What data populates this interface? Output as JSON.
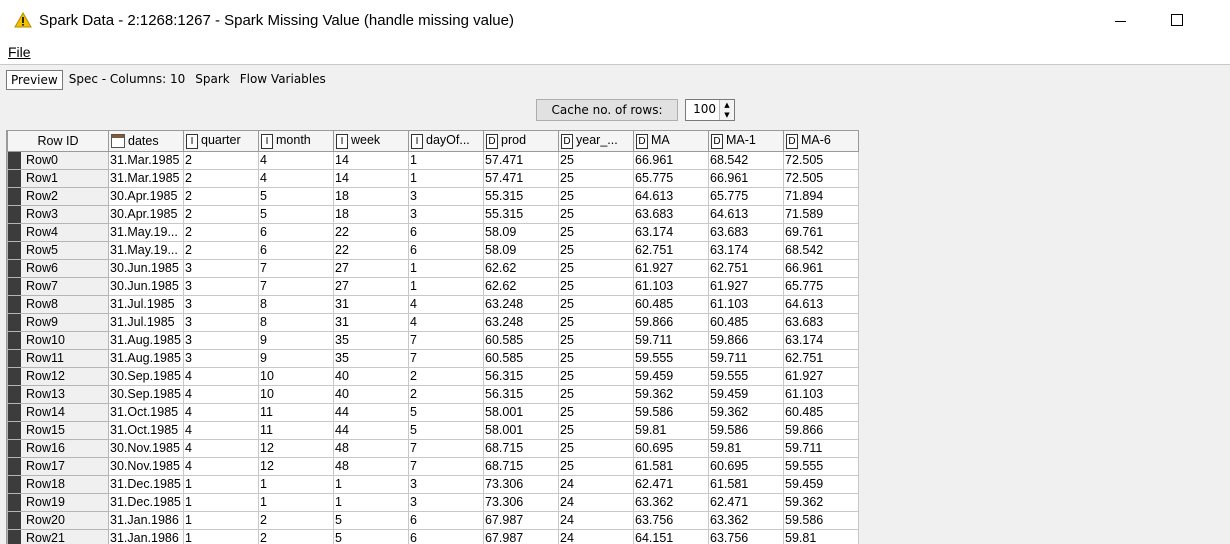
{
  "window": {
    "title": "Spark Data - 2:1268:1267 - Spark Missing Value (handle missing value)",
    "icon": "warning-triangle-icon",
    "accent": "#f2c200"
  },
  "menu": {
    "file_label": "File"
  },
  "tabs": [
    {
      "label": "Preview",
      "active": true
    },
    {
      "label": "Spec - Columns: 10",
      "active": false
    },
    {
      "label": "Spark",
      "active": false
    },
    {
      "label": "Flow Variables",
      "active": false
    }
  ],
  "cache": {
    "button_label": "Cache no. of rows:",
    "value": "100"
  },
  "table": {
    "columns": [
      {
        "label": "Row ID",
        "type": ""
      },
      {
        "label": "dates",
        "type": "date"
      },
      {
        "label": "quarter",
        "type": "I"
      },
      {
        "label": "month",
        "type": "I"
      },
      {
        "label": "week",
        "type": "I"
      },
      {
        "label": "dayOf...",
        "type": "I"
      },
      {
        "label": "prod",
        "type": "D"
      },
      {
        "label": "year_...",
        "type": "D"
      },
      {
        "label": "MA",
        "type": "D"
      },
      {
        "label": "MA-1",
        "type": "D"
      },
      {
        "label": "MA-6",
        "type": "D"
      }
    ],
    "rows": [
      [
        "Row0",
        "31.Mar.1985",
        "2",
        "4",
        "14",
        "1",
        "57.471",
        "25",
        "66.961",
        "68.542",
        "72.505"
      ],
      [
        "Row1",
        "31.Mar.1985",
        "2",
        "4",
        "14",
        "1",
        "57.471",
        "25",
        "65.775",
        "66.961",
        "72.505"
      ],
      [
        "Row2",
        "30.Apr.1985",
        "2",
        "5",
        "18",
        "3",
        "55.315",
        "25",
        "64.613",
        "65.775",
        "71.894"
      ],
      [
        "Row3",
        "30.Apr.1985",
        "2",
        "5",
        "18",
        "3",
        "55.315",
        "25",
        "63.683",
        "64.613",
        "71.589"
      ],
      [
        "Row4",
        "31.May.19...",
        "2",
        "6",
        "22",
        "6",
        "58.09",
        "25",
        "63.174",
        "63.683",
        "69.761"
      ],
      [
        "Row5",
        "31.May.19...",
        "2",
        "6",
        "22",
        "6",
        "58.09",
        "25",
        "62.751",
        "63.174",
        "68.542"
      ],
      [
        "Row6",
        "30.Jun.1985",
        "3",
        "7",
        "27",
        "1",
        "62.62",
        "25",
        "61.927",
        "62.751",
        "66.961"
      ],
      [
        "Row7",
        "30.Jun.1985",
        "3",
        "7",
        "27",
        "1",
        "62.62",
        "25",
        "61.103",
        "61.927",
        "65.775"
      ],
      [
        "Row8",
        "31.Jul.1985",
        "3",
        "8",
        "31",
        "4",
        "63.248",
        "25",
        "60.485",
        "61.103",
        "64.613"
      ],
      [
        "Row9",
        "31.Jul.1985",
        "3",
        "8",
        "31",
        "4",
        "63.248",
        "25",
        "59.866",
        "60.485",
        "63.683"
      ],
      [
        "Row10",
        "31.Aug.1985",
        "3",
        "9",
        "35",
        "7",
        "60.585",
        "25",
        "59.711",
        "59.866",
        "63.174"
      ],
      [
        "Row11",
        "31.Aug.1985",
        "3",
        "9",
        "35",
        "7",
        "60.585",
        "25",
        "59.555",
        "59.711",
        "62.751"
      ],
      [
        "Row12",
        "30.Sep.1985",
        "4",
        "10",
        "40",
        "2",
        "56.315",
        "25",
        "59.459",
        "59.555",
        "61.927"
      ],
      [
        "Row13",
        "30.Sep.1985",
        "4",
        "10",
        "40",
        "2",
        "56.315",
        "25",
        "59.362",
        "59.459",
        "61.103"
      ],
      [
        "Row14",
        "31.Oct.1985",
        "4",
        "11",
        "44",
        "5",
        "58.001",
        "25",
        "59.586",
        "59.362",
        "60.485"
      ],
      [
        "Row15",
        "31.Oct.1985",
        "4",
        "11",
        "44",
        "5",
        "58.001",
        "25",
        "59.81",
        "59.586",
        "59.866"
      ],
      [
        "Row16",
        "30.Nov.1985",
        "4",
        "12",
        "48",
        "7",
        "68.715",
        "25",
        "60.695",
        "59.81",
        "59.711"
      ],
      [
        "Row17",
        "30.Nov.1985",
        "4",
        "12",
        "48",
        "7",
        "68.715",
        "25",
        "61.581",
        "60.695",
        "59.555"
      ],
      [
        "Row18",
        "31.Dec.1985",
        "1",
        "1",
        "1",
        "3",
        "73.306",
        "24",
        "62.471",
        "61.581",
        "59.459"
      ],
      [
        "Row19",
        "31.Dec.1985",
        "1",
        "1",
        "1",
        "3",
        "73.306",
        "24",
        "63.362",
        "62.471",
        "59.362"
      ],
      [
        "Row20",
        "31.Jan.1986",
        "1",
        "2",
        "5",
        "6",
        "67.987",
        "24",
        "63.756",
        "63.362",
        "59.586"
      ],
      [
        "Row21",
        "31.Jan.1986",
        "1",
        "2",
        "5",
        "6",
        "67.987",
        "24",
        "64.151",
        "63.756",
        "59.81"
      ]
    ]
  }
}
